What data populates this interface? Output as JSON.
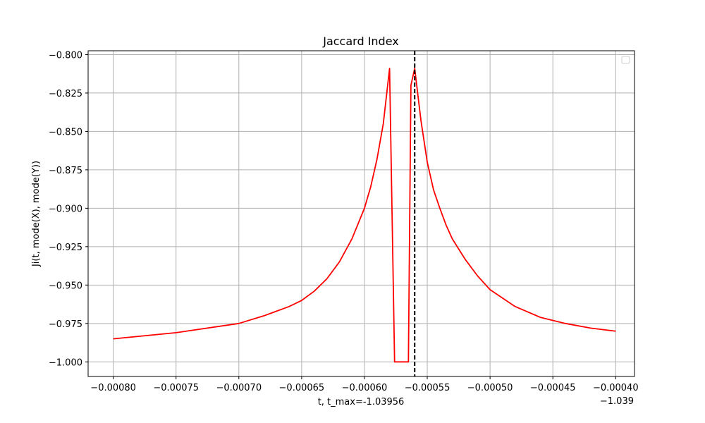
{
  "chart_data": {
    "type": "line",
    "title": "Jaccard Index",
    "xlabel": "t, t_max=-1.03956",
    "ylabel": "Ji(t, mode(X), mode(Y))",
    "x_offset_label": "−1.039",
    "xlim": [
      -0.00082,
      -0.000385
    ],
    "ylim": [
      -1.0095,
      -0.7975
    ],
    "x_ticks": [
      -0.0008,
      -0.00075,
      -0.0007,
      -0.00065,
      -0.0006,
      -0.00055,
      -0.0005,
      -0.00045,
      -0.0004
    ],
    "x_tick_labels": [
      "−0.00080",
      "−0.00075",
      "−0.00070",
      "−0.00065",
      "−0.00060",
      "−0.00055",
      "−0.00050",
      "−0.00045",
      "−0.00040"
    ],
    "y_ticks": [
      -0.8,
      -0.825,
      -0.85,
      -0.875,
      -0.9,
      -0.925,
      -0.95,
      -0.975,
      -1.0
    ],
    "y_tick_labels": [
      "−0.800",
      "−0.825",
      "−0.850",
      "−0.875",
      "−0.900",
      "−0.925",
      "−0.950",
      "−0.975",
      "−1.000"
    ],
    "grid": true,
    "legend": "upper right (empty)",
    "series": [
      {
        "color": "#ff0000",
        "x": [
          -0.0008,
          -0.00075,
          -0.0007,
          -0.00068,
          -0.00066,
          -0.00065,
          -0.00064,
          -0.00063,
          -0.00062,
          -0.00061,
          -0.0006,
          -0.000595,
          -0.00059,
          -0.000585,
          -0.00058,
          -0.000576,
          -0.000572,
          -0.0005675,
          -0.000565,
          -0.000563,
          -0.00056,
          -0.000555,
          -0.00055,
          -0.000545,
          -0.00054,
          -0.000535,
          -0.00053,
          -0.00052,
          -0.00051,
          -0.0005,
          -0.00048,
          -0.00046,
          -0.00044,
          -0.00042,
          -0.0004
        ],
        "y": [
          -0.985,
          -0.981,
          -0.975,
          -0.97,
          -0.964,
          -0.96,
          -0.954,
          -0.946,
          -0.935,
          -0.92,
          -0.9,
          -0.886,
          -0.868,
          -0.845,
          -0.809,
          -1.0,
          -1.0,
          -1.0,
          -1.0,
          -0.82,
          -0.809,
          -0.843,
          -0.87,
          -0.888,
          -0.9,
          -0.911,
          -0.92,
          -0.933,
          -0.944,
          -0.953,
          -0.964,
          -0.971,
          -0.975,
          -0.978,
          -0.98
        ]
      }
    ],
    "vline": {
      "x": -0.00056,
      "style": "dashed",
      "color": "#000000"
    }
  }
}
